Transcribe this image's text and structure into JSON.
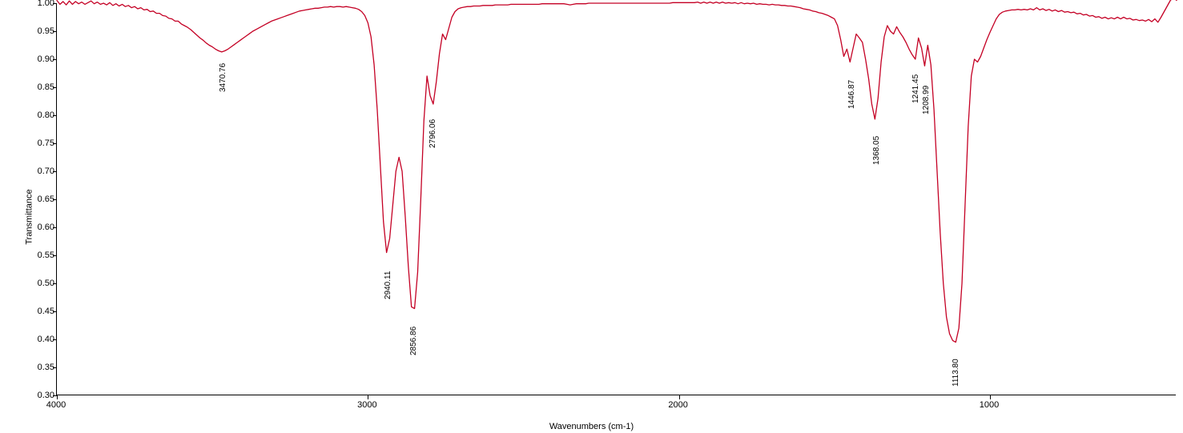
{
  "chart": {
    "type": "line",
    "xlabel": "Wavenumbers (cm-1)",
    "ylabel": "Transmittance",
    "background_color": "#ffffff",
    "axis_color": "#000000",
    "tick_color": "#000000",
    "tick_fontsize": 11,
    "label_fontsize": 11,
    "line_color": "#c40024",
    "line_width": 1.3,
    "xlim": [
      4000,
      400
    ],
    "ylim": [
      0.3,
      1.0
    ],
    "yticks": [
      1.0,
      0.95,
      0.9,
      0.85,
      0.8,
      0.75,
      0.7,
      0.65,
      0.6,
      0.55,
      0.5,
      0.45,
      0.4,
      0.35,
      0.3
    ],
    "ytick_labels": [
      "1.00",
      "0.95",
      "0.90",
      "0.85",
      "0.80",
      "0.75",
      "0.70",
      "0.65",
      "0.60",
      "0.55",
      "0.50",
      "0.45",
      "0.40",
      "0.35",
      "0.30"
    ],
    "xticks": [
      4000,
      3000,
      2000,
      1000
    ],
    "xtick_labels": [
      "4000",
      "3000",
      "2000",
      "1000"
    ],
    "peak_labels": [
      {
        "wavenumber": 3470.76,
        "transmittance": 0.92,
        "text": "3470.76"
      },
      {
        "wavenumber": 2940.11,
        "transmittance": 0.55,
        "text": "2940.11"
      },
      {
        "wavenumber": 2856.86,
        "transmittance": 0.45,
        "text": "2856.86"
      },
      {
        "wavenumber": 2796.06,
        "transmittance": 0.82,
        "text": "2796.06"
      },
      {
        "wavenumber": 1446.87,
        "transmittance": 0.89,
        "text": "1446.87"
      },
      {
        "wavenumber": 1368.05,
        "transmittance": 0.79,
        "text": "1368.05"
      },
      {
        "wavenumber": 1241.45,
        "transmittance": 0.9,
        "text": "1241.45"
      },
      {
        "wavenumber": 1208.99,
        "transmittance": 0.88,
        "text": "1208.99"
      },
      {
        "wavenumber": 1113.8,
        "transmittance": 0.395,
        "text": "1113.80"
      }
    ],
    "peak_label_fontsize": 10,
    "peak_label_color": "#000000",
    "data": [
      [
        4000,
        1.005
      ],
      [
        3990,
        0.998
      ],
      [
        3980,
        1.003
      ],
      [
        3970,
        0.997
      ],
      [
        3960,
        1.004
      ],
      [
        3950,
        0.998
      ],
      [
        3940,
        1.003
      ],
      [
        3930,
        0.999
      ],
      [
        3920,
        1.002
      ],
      [
        3910,
        0.998
      ],
      [
        3900,
        1.001
      ],
      [
        3890,
        1.004
      ],
      [
        3880,
        0.999
      ],
      [
        3870,
        1.002
      ],
      [
        3860,
        0.998
      ],
      [
        3850,
        1.0
      ],
      [
        3840,
        0.997
      ],
      [
        3830,
        1.001
      ],
      [
        3820,
        0.996
      ],
      [
        3810,
        0.999
      ],
      [
        3800,
        0.995
      ],
      [
        3790,
        0.998
      ],
      [
        3780,
        0.994
      ],
      [
        3770,
        0.996
      ],
      [
        3760,
        0.992
      ],
      [
        3750,
        0.994
      ],
      [
        3740,
        0.99
      ],
      [
        3730,
        0.992
      ],
      [
        3720,
        0.988
      ],
      [
        3710,
        0.989
      ],
      [
        3700,
        0.985
      ],
      [
        3690,
        0.986
      ],
      [
        3680,
        0.982
      ],
      [
        3670,
        0.982
      ],
      [
        3660,
        0.978
      ],
      [
        3650,
        0.977
      ],
      [
        3640,
        0.973
      ],
      [
        3630,
        0.972
      ],
      [
        3620,
        0.968
      ],
      [
        3610,
        0.968
      ],
      [
        3600,
        0.963
      ],
      [
        3590,
        0.96
      ],
      [
        3580,
        0.957
      ],
      [
        3570,
        0.953
      ],
      [
        3560,
        0.948
      ],
      [
        3550,
        0.943
      ],
      [
        3540,
        0.938
      ],
      [
        3530,
        0.934
      ],
      [
        3520,
        0.929
      ],
      [
        3510,
        0.925
      ],
      [
        3500,
        0.922
      ],
      [
        3490,
        0.918
      ],
      [
        3480,
        0.915
      ],
      [
        3470,
        0.913
      ],
      [
        3460,
        0.915
      ],
      [
        3450,
        0.918
      ],
      [
        3440,
        0.922
      ],
      [
        3430,
        0.926
      ],
      [
        3420,
        0.93
      ],
      [
        3410,
        0.934
      ],
      [
        3400,
        0.938
      ],
      [
        3390,
        0.942
      ],
      [
        3380,
        0.946
      ],
      [
        3370,
        0.95
      ],
      [
        3360,
        0.953
      ],
      [
        3350,
        0.956
      ],
      [
        3340,
        0.959
      ],
      [
        3330,
        0.962
      ],
      [
        3320,
        0.965
      ],
      [
        3310,
        0.968
      ],
      [
        3300,
        0.97
      ],
      [
        3290,
        0.972
      ],
      [
        3280,
        0.974
      ],
      [
        3270,
        0.976
      ],
      [
        3260,
        0.978
      ],
      [
        3250,
        0.98
      ],
      [
        3240,
        0.982
      ],
      [
        3230,
        0.984
      ],
      [
        3220,
        0.986
      ],
      [
        3210,
        0.987
      ],
      [
        3200,
        0.988
      ],
      [
        3190,
        0.989
      ],
      [
        3180,
        0.99
      ],
      [
        3170,
        0.991
      ],
      [
        3160,
        0.991
      ],
      [
        3150,
        0.992
      ],
      [
        3140,
        0.993
      ],
      [
        3130,
        0.993
      ],
      [
        3120,
        0.994
      ],
      [
        3110,
        0.993
      ],
      [
        3100,
        0.994
      ],
      [
        3090,
        0.994
      ],
      [
        3080,
        0.993
      ],
      [
        3070,
        0.994
      ],
      [
        3060,
        0.993
      ],
      [
        3050,
        0.992
      ],
      [
        3040,
        0.991
      ],
      [
        3030,
        0.989
      ],
      [
        3020,
        0.985
      ],
      [
        3010,
        0.978
      ],
      [
        3000,
        0.965
      ],
      [
        2990,
        0.94
      ],
      [
        2980,
        0.89
      ],
      [
        2970,
        0.81
      ],
      [
        2960,
        0.71
      ],
      [
        2950,
        0.61
      ],
      [
        2940,
        0.555
      ],
      [
        2930,
        0.58
      ],
      [
        2920,
        0.64
      ],
      [
        2910,
        0.7
      ],
      [
        2900,
        0.725
      ],
      [
        2890,
        0.7
      ],
      [
        2880,
        0.62
      ],
      [
        2870,
        0.53
      ],
      [
        2860,
        0.458
      ],
      [
        2850,
        0.455
      ],
      [
        2840,
        0.52
      ],
      [
        2830,
        0.65
      ],
      [
        2820,
        0.79
      ],
      [
        2810,
        0.87
      ],
      [
        2800,
        0.835
      ],
      [
        2790,
        0.82
      ],
      [
        2780,
        0.86
      ],
      [
        2770,
        0.91
      ],
      [
        2760,
        0.945
      ],
      [
        2750,
        0.935
      ],
      [
        2740,
        0.955
      ],
      [
        2730,
        0.975
      ],
      [
        2720,
        0.985
      ],
      [
        2710,
        0.99
      ],
      [
        2700,
        0.992
      ],
      [
        2690,
        0.993
      ],
      [
        2680,
        0.994
      ],
      [
        2670,
        0.994
      ],
      [
        2660,
        0.995
      ],
      [
        2650,
        0.995
      ],
      [
        2640,
        0.995
      ],
      [
        2630,
        0.996
      ],
      [
        2620,
        0.996
      ],
      [
        2610,
        0.996
      ],
      [
        2600,
        0.996
      ],
      [
        2590,
        0.997
      ],
      [
        2580,
        0.997
      ],
      [
        2570,
        0.997
      ],
      [
        2560,
        0.997
      ],
      [
        2550,
        0.997
      ],
      [
        2540,
        0.998
      ],
      [
        2530,
        0.998
      ],
      [
        2520,
        0.998
      ],
      [
        2510,
        0.998
      ],
      [
        2500,
        0.998
      ],
      [
        2490,
        0.998
      ],
      [
        2480,
        0.998
      ],
      [
        2470,
        0.998
      ],
      [
        2460,
        0.998
      ],
      [
        2450,
        0.998
      ],
      [
        2440,
        0.999
      ],
      [
        2430,
        0.999
      ],
      [
        2420,
        0.999
      ],
      [
        2410,
        0.999
      ],
      [
        2400,
        0.999
      ],
      [
        2390,
        0.999
      ],
      [
        2380,
        0.999
      ],
      [
        2370,
        0.999
      ],
      [
        2360,
        0.998
      ],
      [
        2350,
        0.997
      ],
      [
        2340,
        0.998
      ],
      [
        2330,
        0.999
      ],
      [
        2320,
        0.999
      ],
      [
        2310,
        0.999
      ],
      [
        2300,
        0.999
      ],
      [
        2290,
        1.0
      ],
      [
        2280,
        1.0
      ],
      [
        2270,
        1.0
      ],
      [
        2260,
        1.0
      ],
      [
        2250,
        1.0
      ],
      [
        2240,
        1.0
      ],
      [
        2230,
        1.0
      ],
      [
        2220,
        1.0
      ],
      [
        2210,
        1.0
      ],
      [
        2200,
        1.0
      ],
      [
        2190,
        1.0
      ],
      [
        2180,
        1.0
      ],
      [
        2170,
        1.0
      ],
      [
        2160,
        1.0
      ],
      [
        2150,
        1.0
      ],
      [
        2140,
        1.0
      ],
      [
        2130,
        1.0
      ],
      [
        2120,
        1.0
      ],
      [
        2110,
        1.0
      ],
      [
        2100,
        1.0
      ],
      [
        2090,
        1.0
      ],
      [
        2080,
        1.0
      ],
      [
        2070,
        1.0
      ],
      [
        2060,
        1.0
      ],
      [
        2050,
        1.0
      ],
      [
        2040,
        1.0
      ],
      [
        2030,
        1.0
      ],
      [
        2020,
        1.001
      ],
      [
        2010,
        1.001
      ],
      [
        2000,
        1.001
      ],
      [
        1990,
        1.001
      ],
      [
        1980,
        1.001
      ],
      [
        1970,
        1.001
      ],
      [
        1960,
        1.001
      ],
      [
        1950,
        1.001
      ],
      [
        1940,
        1.002
      ],
      [
        1930,
        1.0
      ],
      [
        1920,
        1.002
      ],
      [
        1910,
        1.0
      ],
      [
        1900,
        1.002
      ],
      [
        1890,
        1.0
      ],
      [
        1880,
        1.002
      ],
      [
        1870,
        1.0
      ],
      [
        1860,
        1.002
      ],
      [
        1850,
        1.0
      ],
      [
        1840,
        1.001
      ],
      [
        1830,
        1.0
      ],
      [
        1820,
        1.001
      ],
      [
        1810,
        0.999
      ],
      [
        1800,
        1.001
      ],
      [
        1790,
        0.999
      ],
      [
        1780,
        1.0
      ],
      [
        1770,
        0.999
      ],
      [
        1760,
        1.0
      ],
      [
        1750,
        0.998
      ],
      [
        1740,
        0.999
      ],
      [
        1730,
        0.998
      ],
      [
        1720,
        0.998
      ],
      [
        1710,
        0.997
      ],
      [
        1700,
        0.998
      ],
      [
        1690,
        0.997
      ],
      [
        1680,
        0.997
      ],
      [
        1670,
        0.996
      ],
      [
        1660,
        0.996
      ],
      [
        1650,
        0.995
      ],
      [
        1640,
        0.995
      ],
      [
        1630,
        0.994
      ],
      [
        1620,
        0.993
      ],
      [
        1610,
        0.992
      ],
      [
        1600,
        0.99
      ],
      [
        1590,
        0.989
      ],
      [
        1580,
        0.988
      ],
      [
        1570,
        0.986
      ],
      [
        1560,
        0.985
      ],
      [
        1550,
        0.983
      ],
      [
        1540,
        0.982
      ],
      [
        1530,
        0.98
      ],
      [
        1520,
        0.978
      ],
      [
        1510,
        0.975
      ],
      [
        1500,
        0.972
      ],
      [
        1490,
        0.96
      ],
      [
        1480,
        0.935
      ],
      [
        1470,
        0.905
      ],
      [
        1460,
        0.918
      ],
      [
        1450,
        0.895
      ],
      [
        1440,
        0.92
      ],
      [
        1430,
        0.945
      ],
      [
        1420,
        0.938
      ],
      [
        1410,
        0.93
      ],
      [
        1400,
        0.9
      ],
      [
        1390,
        0.865
      ],
      [
        1380,
        0.82
      ],
      [
        1370,
        0.793
      ],
      [
        1360,
        0.83
      ],
      [
        1350,
        0.895
      ],
      [
        1340,
        0.94
      ],
      [
        1330,
        0.96
      ],
      [
        1320,
        0.95
      ],
      [
        1310,
        0.945
      ],
      [
        1300,
        0.958
      ],
      [
        1290,
        0.948
      ],
      [
        1280,
        0.94
      ],
      [
        1270,
        0.93
      ],
      [
        1260,
        0.918
      ],
      [
        1250,
        0.908
      ],
      [
        1240,
        0.9
      ],
      [
        1230,
        0.938
      ],
      [
        1220,
        0.92
      ],
      [
        1210,
        0.888
      ],
      [
        1200,
        0.925
      ],
      [
        1190,
        0.89
      ],
      [
        1180,
        0.81
      ],
      [
        1170,
        0.7
      ],
      [
        1160,
        0.59
      ],
      [
        1150,
        0.5
      ],
      [
        1140,
        0.44
      ],
      [
        1130,
        0.41
      ],
      [
        1120,
        0.398
      ],
      [
        1110,
        0.395
      ],
      [
        1100,
        0.42
      ],
      [
        1090,
        0.5
      ],
      [
        1080,
        0.64
      ],
      [
        1070,
        0.78
      ],
      [
        1060,
        0.87
      ],
      [
        1050,
        0.9
      ],
      [
        1040,
        0.895
      ],
      [
        1030,
        0.905
      ],
      [
        1020,
        0.92
      ],
      [
        1010,
        0.935
      ],
      [
        1000,
        0.948
      ],
      [
        990,
        0.96
      ],
      [
        980,
        0.972
      ],
      [
        970,
        0.98
      ],
      [
        960,
        0.984
      ],
      [
        950,
        0.986
      ],
      [
        940,
        0.987
      ],
      [
        930,
        0.988
      ],
      [
        920,
        0.988
      ],
      [
        910,
        0.989
      ],
      [
        900,
        0.988
      ],
      [
        890,
        0.989
      ],
      [
        880,
        0.988
      ],
      [
        870,
        0.99
      ],
      [
        860,
        0.988
      ],
      [
        850,
        0.992
      ],
      [
        840,
        0.988
      ],
      [
        830,
        0.99
      ],
      [
        820,
        0.987
      ],
      [
        810,
        0.989
      ],
      [
        800,
        0.986
      ],
      [
        790,
        0.988
      ],
      [
        780,
        0.985
      ],
      [
        770,
        0.987
      ],
      [
        760,
        0.984
      ],
      [
        750,
        0.985
      ],
      [
        740,
        0.983
      ],
      [
        730,
        0.984
      ],
      [
        720,
        0.981
      ],
      [
        710,
        0.982
      ],
      [
        700,
        0.979
      ],
      [
        690,
        0.98
      ],
      [
        680,
        0.977
      ],
      [
        670,
        0.978
      ],
      [
        660,
        0.975
      ],
      [
        650,
        0.976
      ],
      [
        640,
        0.973
      ],
      [
        630,
        0.975
      ],
      [
        620,
        0.972
      ],
      [
        610,
        0.974
      ],
      [
        600,
        0.972
      ],
      [
        590,
        0.975
      ],
      [
        580,
        0.972
      ],
      [
        570,
        0.975
      ],
      [
        560,
        0.972
      ],
      [
        550,
        0.973
      ],
      [
        540,
        0.97
      ],
      [
        530,
        0.971
      ],
      [
        520,
        0.969
      ],
      [
        510,
        0.97
      ],
      [
        500,
        0.968
      ],
      [
        490,
        0.971
      ],
      [
        480,
        0.967
      ],
      [
        470,
        0.972
      ],
      [
        460,
        0.966
      ],
      [
        450,
        0.975
      ],
      [
        440,
        0.985
      ],
      [
        430,
        0.995
      ],
      [
        420,
        1.005
      ],
      [
        410,
        1.01
      ],
      [
        400,
        1.005
      ]
    ]
  }
}
